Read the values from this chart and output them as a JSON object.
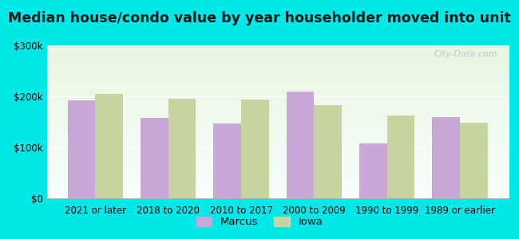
{
  "title": "Median house/condo value by year householder moved into unit",
  "categories": [
    "2021 or later",
    "2018 to 2020",
    "2010 to 2017",
    "2000 to 2009",
    "1990 to 1999",
    "1989 or earlier"
  ],
  "marcus_values": [
    192000,
    158000,
    147000,
    210000,
    108000,
    160000
  ],
  "iowa_values": [
    205000,
    196000,
    194000,
    183000,
    163000,
    148000
  ],
  "marcus_color": "#c9a8d8",
  "iowa_color": "#c8d4a0",
  "background_outer": "#00e8e8",
  "background_inner_top": "#f5fdf8",
  "background_inner_bot": "#d8edd8",
  "ylim": [
    0,
    300000
  ],
  "yticks": [
    0,
    100000,
    200000,
    300000
  ],
  "ytick_labels": [
    "$0",
    "$100k",
    "$200k",
    "$300k"
  ],
  "legend_labels": [
    "Marcus",
    "Iowa"
  ],
  "watermark": "City-Data.com",
  "title_fontsize": 12.5,
  "tick_fontsize": 8.5,
  "legend_fontsize": 9.5
}
